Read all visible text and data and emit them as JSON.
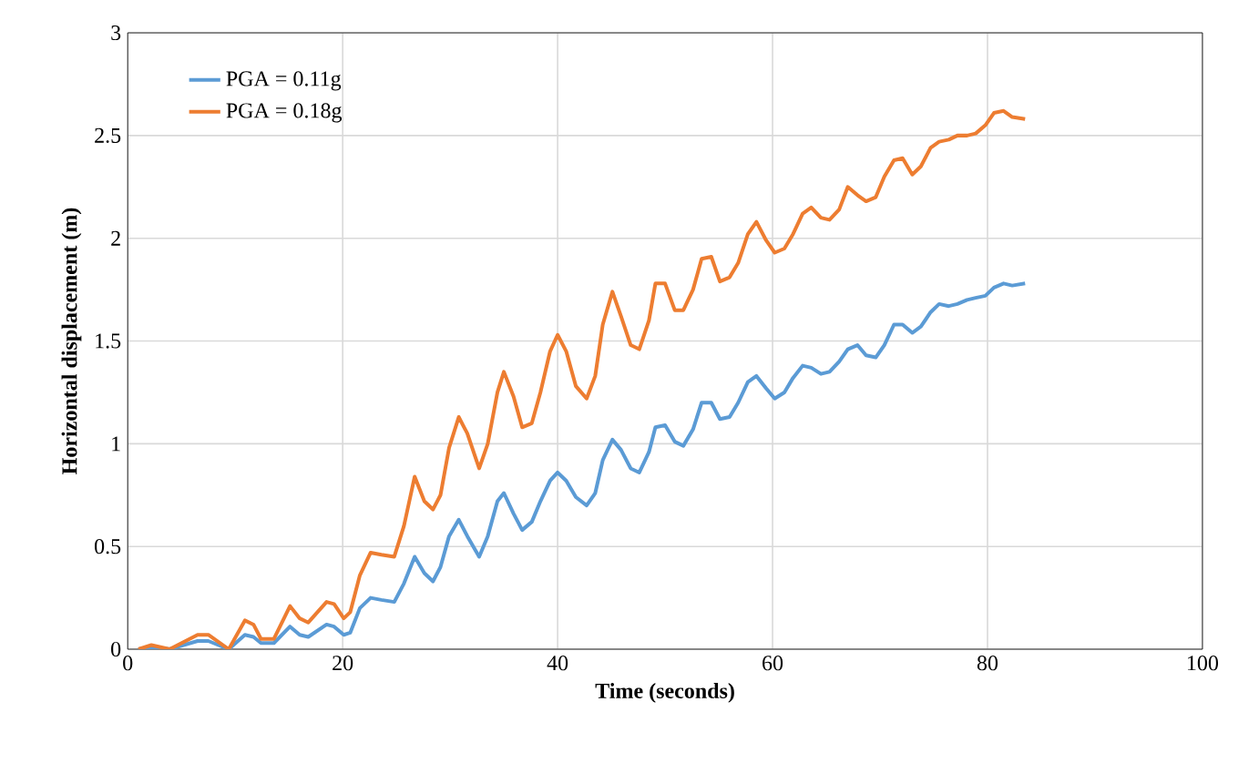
{
  "chart_data": {
    "type": "line",
    "xlabel": "Time (seconds)",
    "ylabel": "Horizontal displacement (m)",
    "x": [
      1.0,
      2.2,
      3.9,
      6.5,
      7.5,
      9.4,
      10.9,
      11.7,
      12.4,
      13.6,
      15.1,
      16.0,
      16.8,
      18.5,
      19.2,
      20.1,
      20.7,
      21.6,
      22.6,
      23.6,
      24.8,
      25.7,
      26.7,
      27.6,
      28.4,
      29.1,
      29.9,
      30.8,
      31.6,
      32.7,
      33.5,
      34.4,
      35.0,
      35.9,
      36.7,
      37.6,
      38.4,
      39.3,
      40.0,
      40.8,
      41.7,
      42.7,
      43.5,
      44.2,
      45.1,
      45.9,
      46.8,
      47.6,
      48.5,
      49.1,
      50.0,
      50.9,
      51.7,
      52.6,
      53.4,
      54.3,
      55.1,
      56.0,
      56.8,
      57.7,
      58.5,
      59.4,
      60.2,
      61.1,
      61.9,
      62.8,
      63.6,
      64.5,
      65.3,
      66.2,
      67.0,
      67.9,
      68.7,
      69.6,
      70.4,
      71.3,
      72.1,
      73.0,
      73.8,
      74.7,
      75.5,
      76.4,
      77.2,
      78.1,
      78.9,
      79.8,
      80.6,
      81.5,
      82.3,
      83.5
    ],
    "series": [
      {
        "name": "PGA = 0.11g",
        "color": "#5b9bd5",
        "values": [
          0,
          0.01,
          0,
          0.04,
          0.04,
          0,
          0.07,
          0.06,
          0.03,
          0.03,
          0.11,
          0.07,
          0.06,
          0.12,
          0.11,
          0.07,
          0.08,
          0.2,
          0.25,
          0.24,
          0.23,
          0.32,
          0.45,
          0.37,
          0.33,
          0.4,
          0.55,
          0.63,
          0.55,
          0.45,
          0.55,
          0.72,
          0.76,
          0.66,
          0.58,
          0.62,
          0.72,
          0.82,
          0.86,
          0.82,
          0.74,
          0.7,
          0.76,
          0.92,
          1.02,
          0.97,
          0.88,
          0.86,
          0.96,
          1.08,
          1.09,
          1.01,
          0.99,
          1.07,
          1.2,
          1.2,
          1.12,
          1.13,
          1.2,
          1.3,
          1.33,
          1.27,
          1.22,
          1.25,
          1.32,
          1.38,
          1.37,
          1.34,
          1.35,
          1.4,
          1.46,
          1.48,
          1.43,
          1.42,
          1.48,
          1.58,
          1.58,
          1.54,
          1.57,
          1.64,
          1.68,
          1.67,
          1.68,
          1.7,
          1.71,
          1.72,
          1.76,
          1.78,
          1.77,
          1.78
        ]
      },
      {
        "name": "PGA = 0.18g",
        "color": "#ed7d31",
        "values": [
          0,
          0.02,
          0,
          0.07,
          0.07,
          0,
          0.14,
          0.12,
          0.05,
          0.05,
          0.21,
          0.15,
          0.13,
          0.23,
          0.22,
          0.15,
          0.18,
          0.36,
          0.47,
          0.46,
          0.45,
          0.6,
          0.84,
          0.72,
          0.68,
          0.75,
          0.98,
          1.13,
          1.05,
          0.88,
          1.0,
          1.25,
          1.35,
          1.23,
          1.08,
          1.1,
          1.25,
          1.45,
          1.53,
          1.45,
          1.28,
          1.22,
          1.33,
          1.58,
          1.74,
          1.62,
          1.48,
          1.46,
          1.6,
          1.78,
          1.78,
          1.65,
          1.65,
          1.75,
          1.9,
          1.91,
          1.79,
          1.81,
          1.88,
          2.02,
          2.08,
          1.99,
          1.93,
          1.95,
          2.02,
          2.12,
          2.15,
          2.1,
          2.09,
          2.14,
          2.25,
          2.21,
          2.18,
          2.2,
          2.3,
          2.38,
          2.39,
          2.31,
          2.35,
          2.44,
          2.47,
          2.48,
          2.5,
          2.5,
          2.51,
          2.55,
          2.61,
          2.62,
          2.59,
          2.58
        ]
      }
    ],
    "xlim": [
      0,
      100
    ],
    "xticks": [
      0,
      20,
      40,
      60,
      80,
      100
    ],
    "ylim": [
      0,
      3
    ],
    "yticks": [
      0,
      0.5,
      1,
      1.5,
      2,
      2.5,
      3
    ],
    "grid": true,
    "legend": "top left",
    "marker": "none",
    "line_style": "solid"
  }
}
